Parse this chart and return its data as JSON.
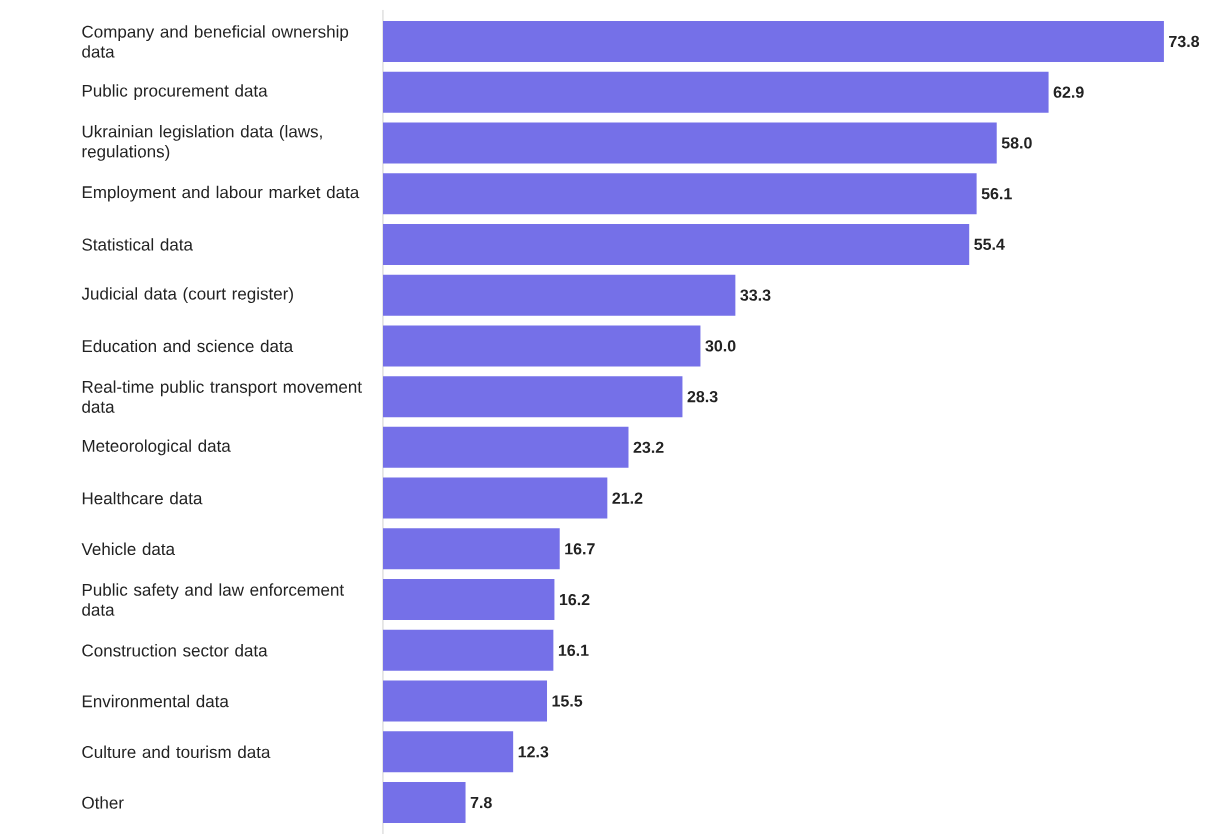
{
  "chart_data": {
    "type": "bar",
    "orientation": "horizontal",
    "color": "#7570e8",
    "value_labels": [
      "73.8",
      "62.9",
      "58.0",
      "56.1",
      "55.4",
      "33.3",
      "30.0",
      "28.3",
      "23.2",
      "21.2",
      "16.7",
      "16.2",
      "16.1",
      "15.5",
      "12.3",
      "7.8"
    ],
    "categories": [
      "Company and beneficial ownership data",
      "Public procurement data",
      "Ukrainian legislation data (laws, regulations)",
      "Employment and labour market data",
      "Statistical data",
      "Judicial data (court register)",
      "Education and science data",
      "Real-time public transport movement data",
      "Meteorological data",
      "Healthcare data",
      "Vehicle data",
      "Public safety and law enforcement data",
      "Construction sector data",
      "Environmental data",
      "Culture and tourism data",
      "Other"
    ],
    "values": [
      73.8,
      62.9,
      58.0,
      56.1,
      55.4,
      33.3,
      30.0,
      28.3,
      23.2,
      21.2,
      16.7,
      16.2,
      16.1,
      15.5,
      12.3,
      7.8
    ]
  }
}
